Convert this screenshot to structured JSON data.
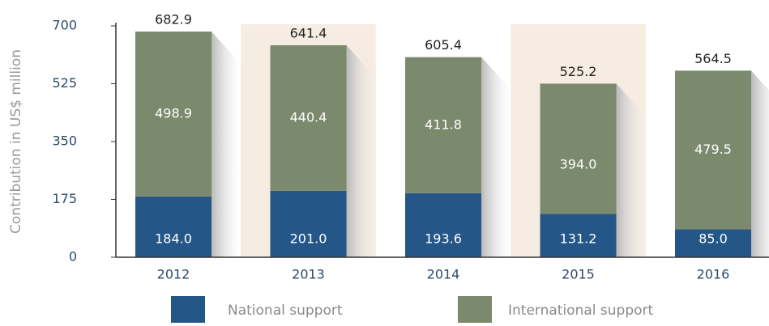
{
  "chart_data": {
    "type": "stacked-bar",
    "y_axis_label": "Contribution in US$ million",
    "categories": [
      "2012",
      "2013",
      "2014",
      "2015",
      "2016"
    ],
    "series": [
      {
        "name": "National support",
        "color": "#245788",
        "values": [
          184.0,
          201.0,
          193.6,
          131.2,
          85.0
        ],
        "value_labels": [
          "184.0",
          "201.0",
          "193.6",
          "131.2",
          "85.0"
        ]
      },
      {
        "name": "International support",
        "color": "#7b896c",
        "values": [
          498.9,
          440.4,
          411.8,
          394.0,
          479.5
        ],
        "value_labels": [
          "498.9",
          "440.4",
          "411.8",
          "394.0",
          "479.5"
        ]
      }
    ],
    "totals": [
      682.9,
      641.4,
      605.4,
      525.2,
      564.5
    ],
    "ylim": [
      0,
      700
    ],
    "yticks": [
      0,
      175,
      350,
      525,
      700
    ],
    "grid": false
  }
}
